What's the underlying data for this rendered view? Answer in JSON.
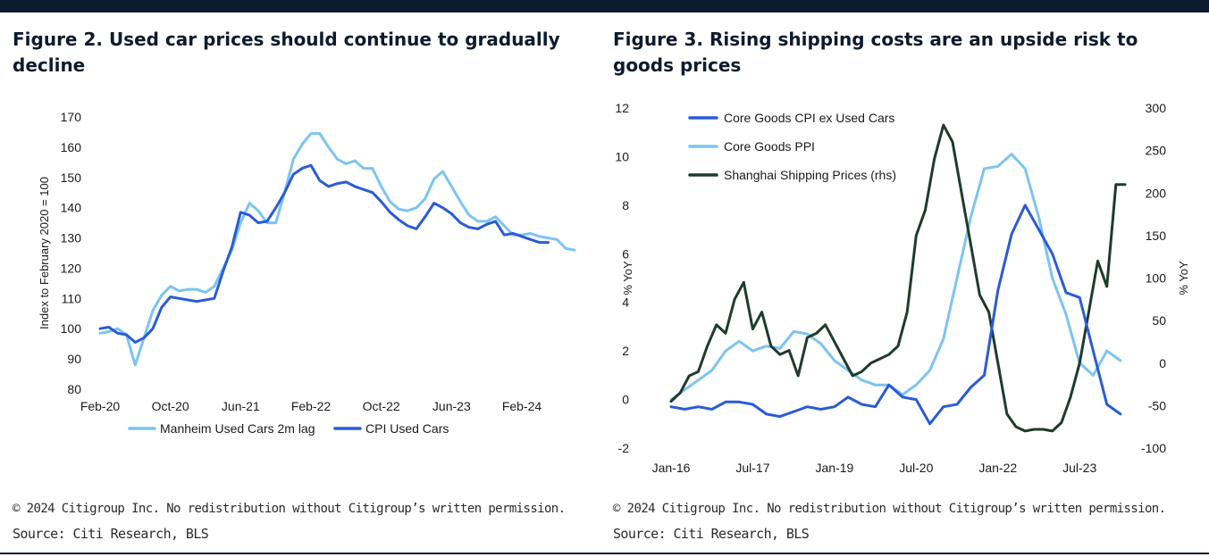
{
  "left": {
    "title": "Figure 2. Used car prices should continue to gradually decline",
    "copyright": "© 2024 Citigroup Inc. No redistribution without Citigroup’s written permission.",
    "source": "Source: Citi Research, BLS"
  },
  "right": {
    "title": "Figure 3. Rising shipping costs are an upside risk to goods prices",
    "copyright": "© 2024 Citigroup Inc. No redistribution without Citigroup’s written permission.",
    "source": "Source: Citi Research, BLS"
  },
  "chart_data": [
    {
      "type": "line",
      "title": "Figure 2. Used car prices should continue to gradually decline",
      "ylabel": "Index to February 2020 = 100",
      "ylim": [
        80,
        170
      ],
      "yticks": [
        "80",
        "90",
        "100",
        "110",
        "120",
        "130",
        "140",
        "150",
        "160",
        "170"
      ],
      "xticks": [
        "Feb-20",
        "Oct-20",
        "Jun-21",
        "Feb-22",
        "Oct-22",
        "Jun-23",
        "Feb-24"
      ],
      "legend_position": "bottom",
      "grid": false,
      "series": [
        {
          "name": "Manheim Used Cars 2m lag",
          "color": "#7cc4f2",
          "x": [
            "2020-02",
            "2020-03",
            "2020-04",
            "2020-05",
            "2020-06",
            "2020-07",
            "2020-08",
            "2020-09",
            "2020-10",
            "2020-11",
            "2020-12",
            "2021-01",
            "2021-02",
            "2021-03",
            "2021-04",
            "2021-05",
            "2021-06",
            "2021-07",
            "2021-08",
            "2021-09",
            "2021-10",
            "2021-11",
            "2021-12",
            "2022-01",
            "2022-02",
            "2022-03",
            "2022-04",
            "2022-05",
            "2022-06",
            "2022-07",
            "2022-08",
            "2022-09",
            "2022-10",
            "2022-11",
            "2022-12",
            "2023-01",
            "2023-02",
            "2023-03",
            "2023-04",
            "2023-05",
            "2023-06",
            "2023-07",
            "2023-08",
            "2023-09",
            "2023-10",
            "2023-11",
            "2023-12",
            "2024-01",
            "2024-02",
            "2024-03",
            "2024-04",
            "2024-05",
            "2024-06",
            "2024-07",
            "2024-08"
          ],
          "values": [
            98.5,
            99,
            100,
            98,
            88,
            97,
            106,
            111,
            114,
            112.5,
            113,
            113,
            112,
            114,
            120,
            126,
            135,
            141.5,
            139,
            135,
            135,
            145,
            156,
            161,
            164.5,
            164.5,
            160,
            156,
            154.5,
            155.5,
            153,
            153,
            147,
            142,
            139.5,
            139,
            140,
            143,
            149.5,
            152,
            147,
            142,
            137.5,
            135.5,
            135.5,
            137,
            134,
            131,
            131,
            131.5,
            130.5,
            130,
            129.5,
            126.5,
            126
          ]
        },
        {
          "name": "CPI Used Cars",
          "color": "#2a5bd7",
          "x": [
            "2020-02",
            "2020-03",
            "2020-04",
            "2020-05",
            "2020-06",
            "2020-07",
            "2020-08",
            "2020-09",
            "2020-10",
            "2020-11",
            "2020-12",
            "2021-01",
            "2021-02",
            "2021-03",
            "2021-04",
            "2021-05",
            "2021-06",
            "2021-07",
            "2021-08",
            "2021-09",
            "2021-10",
            "2021-11",
            "2021-12",
            "2022-01",
            "2022-02",
            "2022-03",
            "2022-04",
            "2022-05",
            "2022-06",
            "2022-07",
            "2022-08",
            "2022-09",
            "2022-10",
            "2022-11",
            "2022-12",
            "2023-01",
            "2023-02",
            "2023-03",
            "2023-04",
            "2023-05",
            "2023-06",
            "2023-07",
            "2023-08",
            "2023-09",
            "2023-10",
            "2023-11",
            "2023-12",
            "2024-01",
            "2024-02",
            "2024-03",
            "2024-04",
            "2024-05"
          ],
          "values": [
            100,
            100.5,
            98.5,
            98,
            95.5,
            97,
            100,
            107,
            110.5,
            110,
            109.5,
            109,
            109.5,
            110,
            119,
            127,
            138.5,
            137.5,
            135,
            135.5,
            140,
            145,
            151,
            153,
            154,
            149,
            147,
            148,
            148.5,
            147,
            146,
            145,
            142,
            138.5,
            136,
            134,
            133,
            137,
            141.5,
            140,
            138,
            135,
            133.5,
            133,
            134.5,
            135.5,
            131,
            131.5,
            130.5,
            129.5,
            128.5,
            128.5
          ]
        }
      ]
    },
    {
      "type": "line",
      "title": "Figure 3. Rising shipping costs are an upside risk to goods prices",
      "ylabel": "% YoY",
      "ylabel_right": "% YoY",
      "ylim": [
        -2,
        12
      ],
      "ylim_right": [
        -100,
        300
      ],
      "yticks": [
        "-2",
        "0",
        "2",
        "4",
        "6",
        "8",
        "10",
        "12"
      ],
      "yticks_right": [
        "-100",
        "-50",
        "0",
        "50",
        "100",
        "150",
        "200",
        "250",
        "300"
      ],
      "xticks": [
        "Jan-16",
        "Jul-17",
        "Jan-19",
        "Jul-20",
        "Jan-22",
        "Jul-23"
      ],
      "legend_position": "top-left",
      "grid": false,
      "series": [
        {
          "name": "Core Goods CPI ex Used Cars",
          "axis": "left",
          "color": "#2a5bd7",
          "x": [
            "2016-01",
            "2016-04",
            "2016-07",
            "2016-10",
            "2017-01",
            "2017-04",
            "2017-07",
            "2017-10",
            "2018-01",
            "2018-04",
            "2018-07",
            "2018-10",
            "2019-01",
            "2019-04",
            "2019-07",
            "2019-10",
            "2020-01",
            "2020-04",
            "2020-07",
            "2020-10",
            "2021-01",
            "2021-04",
            "2021-07",
            "2021-10",
            "2022-01",
            "2022-04",
            "2022-07",
            "2022-10",
            "2023-01",
            "2023-04",
            "2023-07",
            "2023-10",
            "2024-01",
            "2024-04"
          ],
          "values": [
            -0.3,
            -0.4,
            -0.3,
            -0.4,
            -0.1,
            -0.1,
            -0.2,
            -0.6,
            -0.7,
            -0.5,
            -0.3,
            -0.4,
            -0.3,
            0.1,
            -0.2,
            -0.3,
            0.6,
            0.1,
            0.0,
            -1.0,
            -0.3,
            -0.2,
            0.5,
            1.0,
            4.5,
            6.8,
            8.0,
            7.0,
            6.0,
            4.4,
            4.2,
            2.0,
            -0.2,
            -0.6
          ]
        },
        {
          "name": "Core Goods PPI",
          "axis": "left",
          "color": "#7cc4f2",
          "x": [
            "2016-01",
            "2016-04",
            "2016-07",
            "2016-10",
            "2017-01",
            "2017-04",
            "2017-07",
            "2017-10",
            "2018-01",
            "2018-04",
            "2018-07",
            "2018-10",
            "2019-01",
            "2019-04",
            "2019-07",
            "2019-10",
            "2020-01",
            "2020-04",
            "2020-07",
            "2020-10",
            "2021-01",
            "2021-04",
            "2021-07",
            "2021-10",
            "2022-01",
            "2022-04",
            "2022-07",
            "2022-10",
            "2023-01",
            "2023-04",
            "2023-07",
            "2023-10",
            "2024-01",
            "2024-04"
          ],
          "values": [
            0.0,
            0.4,
            0.8,
            1.2,
            2.0,
            2.4,
            2.0,
            2.2,
            2.1,
            2.8,
            2.7,
            2.3,
            1.6,
            1.2,
            0.8,
            0.6,
            0.6,
            0.2,
            0.6,
            1.2,
            2.5,
            5.0,
            7.5,
            9.5,
            9.6,
            10.1,
            9.5,
            7.5,
            5.0,
            3.5,
            1.5,
            1.0,
            2.0,
            1.6
          ]
        },
        {
          "name": "Shanghai Shipping Prices (rhs)",
          "axis": "right",
          "color": "#1e3b2b",
          "x": [
            "2016-01",
            "2016-03",
            "2016-05",
            "2016-07",
            "2016-09",
            "2016-11",
            "2017-01",
            "2017-03",
            "2017-05",
            "2017-07",
            "2017-09",
            "2017-11",
            "2018-01",
            "2018-03",
            "2018-05",
            "2018-07",
            "2018-09",
            "2018-11",
            "2019-01",
            "2019-03",
            "2019-05",
            "2019-07",
            "2019-09",
            "2019-11",
            "2020-01",
            "2020-03",
            "2020-05",
            "2020-07",
            "2020-09",
            "2020-11",
            "2021-01",
            "2021-03",
            "2021-05",
            "2021-07",
            "2021-09",
            "2021-11",
            "2022-01",
            "2022-03",
            "2022-05",
            "2022-07",
            "2022-09",
            "2022-11",
            "2023-01",
            "2023-03",
            "2023-05",
            "2023-07",
            "2023-09",
            "2023-11",
            "2024-01",
            "2024-03",
            "2024-05"
          ],
          "values": [
            -45,
            -35,
            -15,
            -10,
            20,
            45,
            35,
            75,
            95,
            40,
            60,
            20,
            10,
            15,
            -15,
            30,
            35,
            45,
            25,
            5,
            -15,
            -10,
            0,
            5,
            10,
            20,
            60,
            150,
            180,
            240,
            280,
            260,
            200,
            140,
            80,
            60,
            0,
            -60,
            -75,
            -80,
            -78,
            -78,
            -80,
            -70,
            -40,
            0,
            60,
            120,
            90,
            210,
            210
          ]
        }
      ]
    }
  ]
}
